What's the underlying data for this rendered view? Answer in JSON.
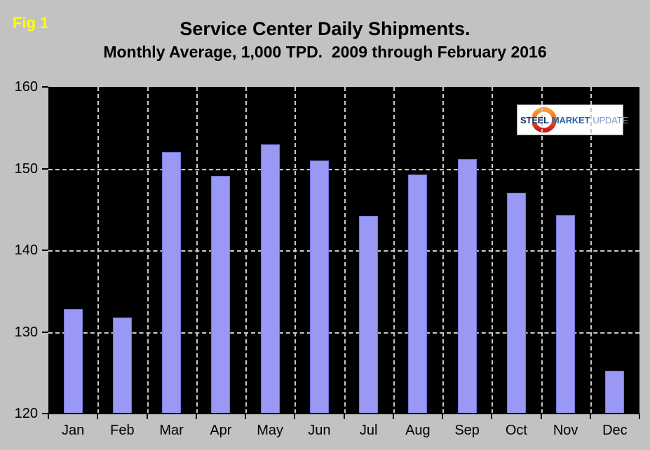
{
  "header": {
    "fig_label": "Fig 1"
  },
  "logo": {
    "steel": "STEEL",
    "market": "MARKET",
    "update": "UPDATE"
  },
  "colors": {
    "page_bg": "#c2c2c2",
    "plot_bg": "#000000",
    "bar_fill": "#9999f5",
    "bar_border": "#7575db",
    "fig_label": "#ffff00",
    "grid": "#c8c8c8",
    "axis_text": "#000000",
    "logo_steel": "#14325e",
    "logo_market": "#2d62a8",
    "logo_update": "#7e9cc9",
    "swoosh_top": "#f9a13b",
    "swoosh_mid": "#f26522",
    "swoosh_bottom": "#c21b1e"
  },
  "chart_data": {
    "type": "bar",
    "title": "Service Center Daily Shipments.",
    "subtitle": "Monthly Average, 1,000 TPD.  2009 through February 2016",
    "categories": [
      "Jan",
      "Feb",
      "Mar",
      "Apr",
      "May",
      "Jun",
      "Jul",
      "Aug",
      "Sep",
      "Oct",
      "Nov",
      "Dec"
    ],
    "values": [
      132.8,
      131.8,
      152.0,
      149.1,
      153.0,
      151.0,
      144.2,
      149.3,
      151.2,
      147.0,
      144.3,
      125.2
    ],
    "xlabel": "",
    "ylabel": "",
    "ylim": [
      120,
      160
    ],
    "yticks": [
      120,
      130,
      140,
      150,
      160
    ],
    "gridlines_y": [
      130,
      140,
      150
    ],
    "grid": "dashed",
    "legend": "none",
    "plot_background": "black"
  }
}
